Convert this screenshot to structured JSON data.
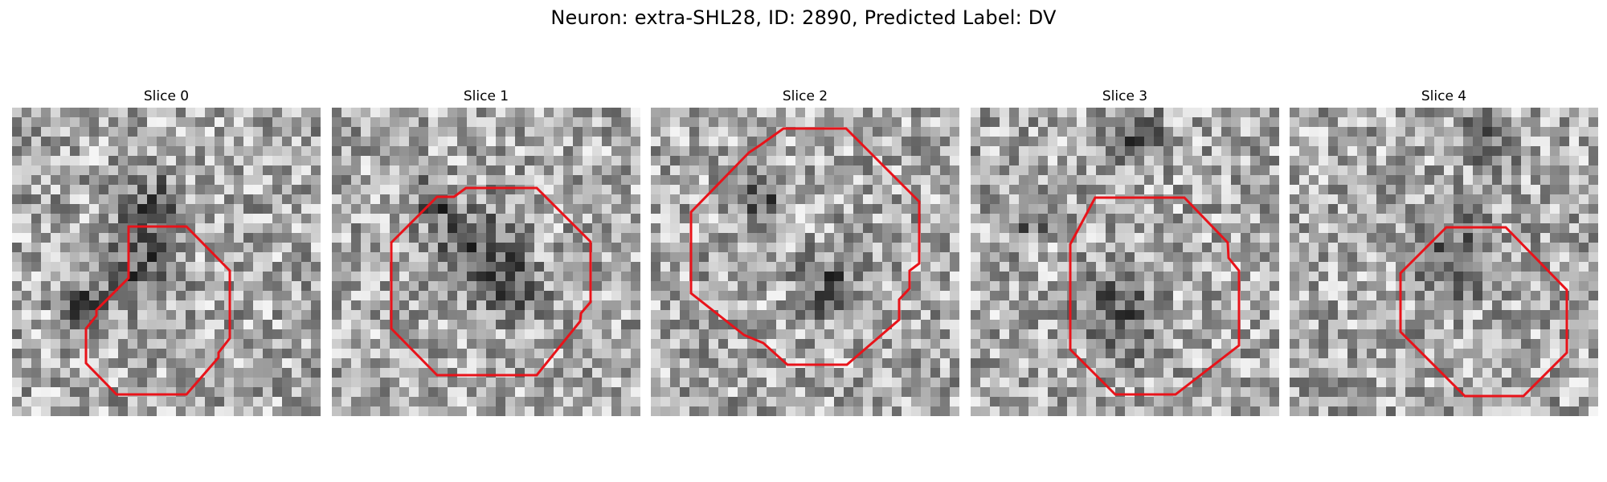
{
  "figure": {
    "title": "Neuron: extra-SHL28, ID: 2890, Predicted Label: DV"
  },
  "colors": {
    "background": "#ffffff",
    "roi_outline": "#e8131a"
  },
  "colormap": "grayscale",
  "panels": [
    {
      "title": "Slice 0",
      "content": "grayscale microscopy patch with red octagonal ROI outline"
    },
    {
      "title": "Slice 1",
      "content": "grayscale microscopy patch with red octagonal ROI outline"
    },
    {
      "title": "Slice 2",
      "content": "grayscale microscopy patch with red octagonal ROI outline"
    },
    {
      "title": "Slice 3",
      "content": "grayscale microscopy patch with red octagonal ROI outline"
    },
    {
      "title": "Slice 4",
      "content": "grayscale microscopy patch with red octagonal ROI outline"
    }
  ]
}
